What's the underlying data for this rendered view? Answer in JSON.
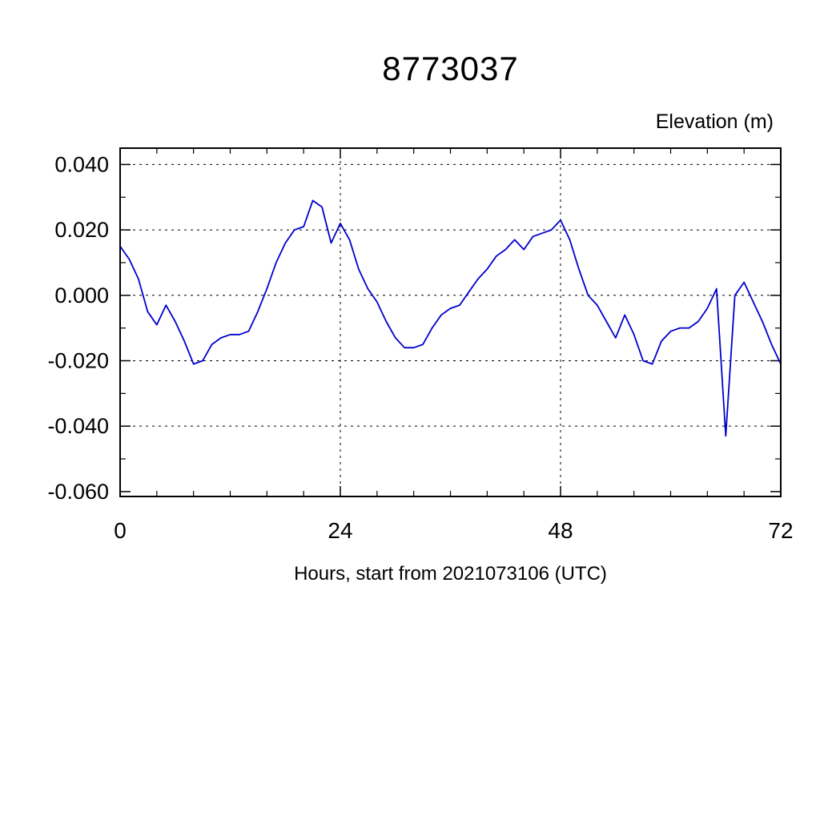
{
  "page": {
    "background": "#ffffff"
  },
  "chart_data": {
    "type": "line",
    "title": "8773037",
    "ylabel": "Elevation (m)",
    "xlabel": "Hours, start from 2021073106 (UTC)",
    "xlim": [
      0,
      72
    ],
    "ylim": [
      -0.0615,
      0.045
    ],
    "grid": true,
    "grid_style": "dashed",
    "grid_x": [
      24,
      48
    ],
    "grid_y": [
      0.04,
      0.02,
      0.0,
      -0.02,
      -0.04
    ],
    "x_major_ticks": [
      0,
      24,
      48,
      72
    ],
    "x_tick_labels": [
      "0",
      "24",
      "48",
      "72"
    ],
    "x_minor_step": 4,
    "y_major_ticks": [
      0.04,
      0.02,
      0.0,
      -0.02,
      -0.04,
      -0.06
    ],
    "y_tick_labels": [
      "0.040",
      "0.020",
      "0.000",
      "-0.020",
      "-0.040",
      "-0.060"
    ],
    "y_minor_step": 0.01,
    "axis_color": "#000000",
    "line_color": "#0000cd",
    "legend": "none",
    "x": [
      0,
      1,
      2,
      3,
      4,
      5,
      6,
      7,
      8,
      9,
      10,
      11,
      12,
      13,
      14,
      15,
      16,
      17,
      18,
      19,
      20,
      21,
      22,
      23,
      24,
      25,
      26,
      27,
      28,
      29,
      30,
      31,
      32,
      33,
      34,
      35,
      36,
      37,
      38,
      39,
      40,
      41,
      42,
      43,
      44,
      45,
      46,
      47,
      48,
      49,
      50,
      51,
      52,
      53,
      54,
      55,
      56,
      57,
      58,
      59,
      60,
      61,
      62,
      63,
      64,
      65,
      66,
      67,
      68,
      69,
      70,
      71,
      72
    ],
    "series": [
      {
        "name": "elevation",
        "color": "#0000cd",
        "values": [
          0.015,
          0.011,
          0.005,
          -0.005,
          -0.009,
          -0.003,
          -0.008,
          -0.014,
          -0.021,
          -0.02,
          -0.015,
          -0.013,
          -0.012,
          -0.012,
          -0.011,
          -0.005,
          0.002,
          0.01,
          0.016,
          0.02,
          0.021,
          0.029,
          0.027,
          0.016,
          0.022,
          0.017,
          0.008,
          0.002,
          -0.002,
          -0.008,
          -0.013,
          -0.016,
          -0.016,
          -0.015,
          -0.01,
          -0.006,
          -0.004,
          -0.003,
          0.001,
          0.005,
          0.008,
          0.012,
          0.014,
          0.017,
          0.014,
          0.018,
          0.019,
          0.02,
          0.023,
          0.017,
          0.008,
          0.0,
          -0.003,
          -0.008,
          -0.013,
          -0.006,
          -0.012,
          -0.02,
          -0.021,
          -0.014,
          -0.011,
          -0.01,
          -0.01,
          -0.008,
          -0.004,
          0.002,
          -0.043,
          0.0,
          0.004,
          -0.002,
          -0.008,
          -0.015,
          -0.021
        ]
      }
    ]
  }
}
